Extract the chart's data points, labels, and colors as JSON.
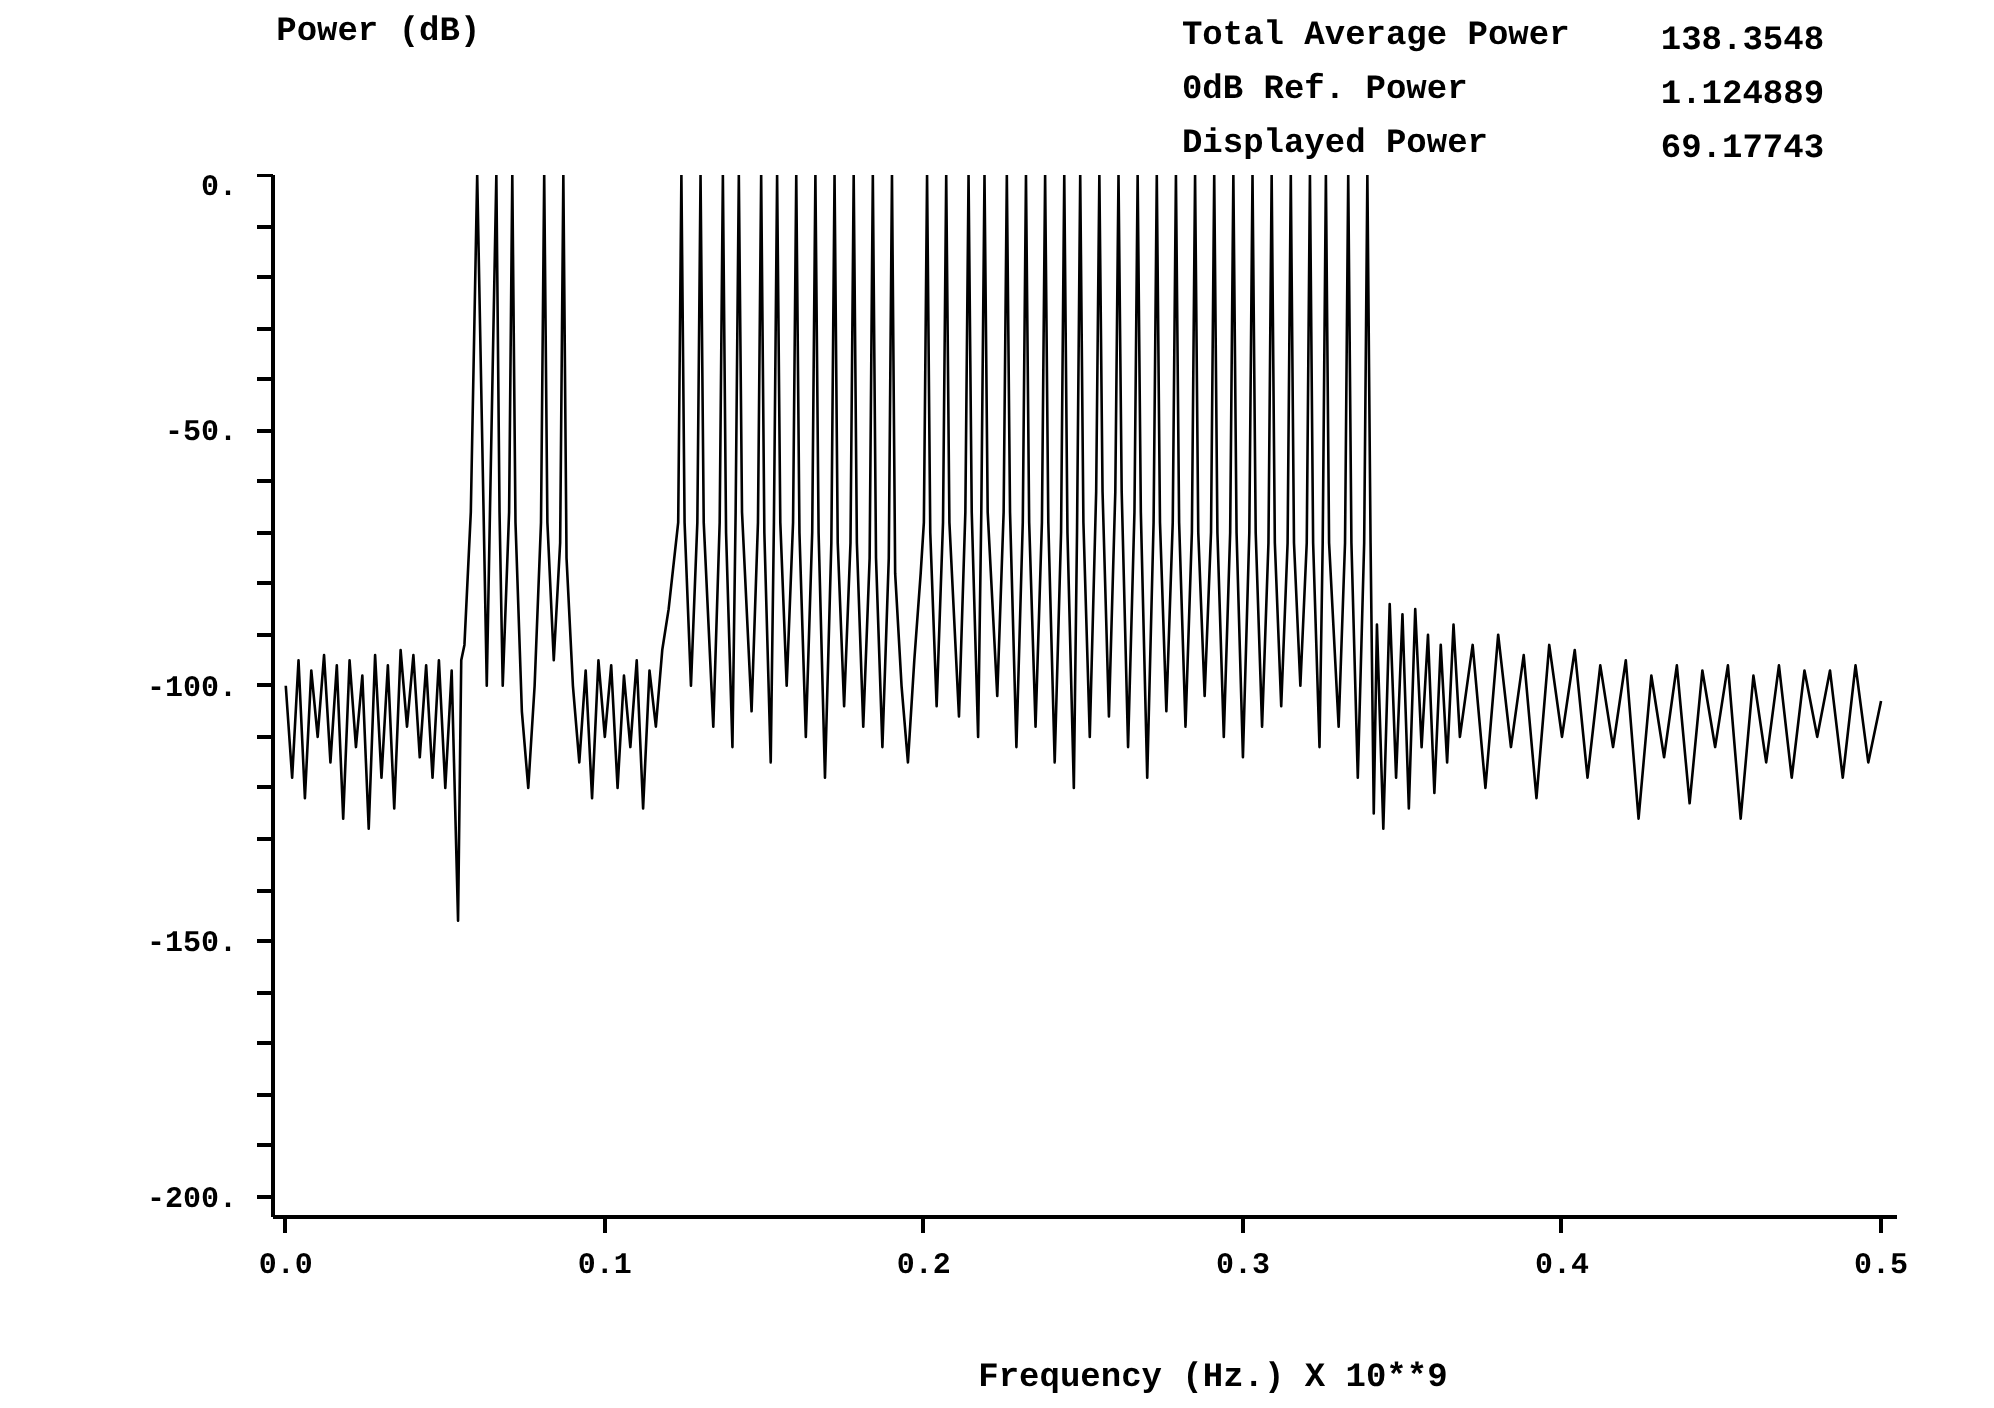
{
  "chart_data": {
    "type": "line",
    "ylabel": "Power (dB)",
    "xlabel": "Frequency (Hz.)  X 10**9",
    "annotations": [
      "Total Average Power",
      "138.3548",
      "0dB Ref. Power",
      "1.124889",
      "Displayed Power",
      "69.17743"
    ],
    "xlim": [
      -0.004,
      0.505
    ],
    "ylim": [
      -204,
      0
    ],
    "xticks": [
      {
        "value": 0,
        "label": "0.0"
      },
      {
        "value": 0.1,
        "label": "0.1"
      },
      {
        "value": 0.2,
        "label": "0.2"
      },
      {
        "value": 0.3,
        "label": "0.3"
      },
      {
        "value": 0.4,
        "label": "0.4"
      },
      {
        "value": 0.5,
        "label": "0.5"
      }
    ],
    "yticks": [
      {
        "value": 0,
        "label": "0."
      },
      {
        "value": -10,
        "label": null
      },
      {
        "value": -20,
        "label": null
      },
      {
        "value": -30,
        "label": null
      },
      {
        "value": -40,
        "label": null
      },
      {
        "value": -50,
        "label": "-50."
      },
      {
        "value": -60,
        "label": null
      },
      {
        "value": -70,
        "label": null
      },
      {
        "value": -80,
        "label": null
      },
      {
        "value": -90,
        "label": null
      },
      {
        "value": -100,
        "label": "-100."
      },
      {
        "value": -110,
        "label": null
      },
      {
        "value": -120,
        "label": null
      },
      {
        "value": -130,
        "label": null
      },
      {
        "value": -140,
        "label": null
      },
      {
        "value": -150,
        "label": "-150."
      },
      {
        "value": -160,
        "label": null
      },
      {
        "value": -170,
        "label": null
      },
      {
        "value": -180,
        "label": null
      },
      {
        "value": -190,
        "label": null
      },
      {
        "value": -200,
        "label": "-200."
      }
    ],
    "grid": false,
    "line_style": "solid",
    "color": "#000000",
    "x": [
      0.0,
      0.002,
      0.004,
      0.006,
      0.008,
      0.01,
      0.012,
      0.014,
      0.016,
      0.018,
      0.02,
      0.022,
      0.024,
      0.026,
      0.028,
      0.03,
      0.032,
      0.034,
      0.036,
      0.038,
      0.04,
      0.042,
      0.044,
      0.046,
      0.048,
      0.05,
      0.052,
      0.054,
      0.055,
      0.056,
      0.058,
      0.06,
      0.062,
      0.063,
      0.064,
      0.066,
      0.067,
      0.068,
      0.07,
      0.071,
      0.072,
      0.074,
      0.076,
      0.078,
      0.08,
      0.081,
      0.082,
      0.084,
      0.086,
      0.087,
      0.088,
      0.09,
      0.092,
      0.094,
      0.096,
      0.098,
      0.1,
      0.102,
      0.104,
      0.106,
      0.108,
      0.11,
      0.112,
      0.114,
      0.116,
      0.118,
      0.12,
      0.123,
      0.124,
      0.125,
      0.127,
      0.129,
      0.13,
      0.131,
      0.134,
      0.136,
      0.137,
      0.138,
      0.14,
      0.141,
      0.142,
      0.143,
      0.146,
      0.148,
      0.149,
      0.15,
      0.152,
      0.153,
      0.154,
      0.155,
      0.157,
      0.159,
      0.16,
      0.161,
      0.163,
      0.165,
      0.166,
      0.167,
      0.169,
      0.171,
      0.172,
      0.173,
      0.175,
      0.177,
      0.178,
      0.179,
      0.181,
      0.183,
      0.184,
      0.185,
      0.187,
      0.189,
      0.19,
      0.191,
      0.193,
      0.195,
      0.197,
      0.199,
      0.2,
      0.201,
      0.202,
      0.204,
      0.206,
      0.207,
      0.208,
      0.211,
      0.213,
      0.214,
      0.215,
      0.217,
      0.218,
      0.219,
      0.22,
      0.223,
      0.225,
      0.226,
      0.227,
      0.229,
      0.231,
      0.232,
      0.233,
      0.235,
      0.237,
      0.238,
      0.239,
      0.241,
      0.243,
      0.244,
      0.245,
      0.247,
      0.248,
      0.249,
      0.25,
      0.252,
      0.254,
      0.255,
      0.256,
      0.258,
      0.26,
      0.261,
      0.262,
      0.264,
      0.266,
      0.267,
      0.268,
      0.27,
      0.272,
      0.273,
      0.274,
      0.276,
      0.278,
      0.279,
      0.28,
      0.282,
      0.284,
      0.285,
      0.286,
      0.288,
      0.29,
      0.291,
      0.292,
      0.294,
      0.296,
      0.297,
      0.298,
      0.3,
      0.302,
      0.303,
      0.304,
      0.306,
      0.308,
      0.309,
      0.31,
      0.312,
      0.314,
      0.315,
      0.316,
      0.318,
      0.32,
      0.321,
      0.322,
      0.324,
      0.325,
      0.326,
      0.327,
      0.33,
      0.332,
      0.333,
      0.334,
      0.336,
      0.338,
      0.339,
      0.34,
      0.341,
      0.342,
      0.344,
      0.346,
      0.348,
      0.35,
      0.352,
      0.354,
      0.356,
      0.358,
      0.36,
      0.362,
      0.364,
      0.366,
      0.368,
      0.372,
      0.376,
      0.38,
      0.384,
      0.388,
      0.392,
      0.396,
      0.4,
      0.404,
      0.408,
      0.412,
      0.416,
      0.42,
      0.424,
      0.428,
      0.432,
      0.436,
      0.44,
      0.444,
      0.448,
      0.452,
      0.456,
      0.46,
      0.464,
      0.468,
      0.472,
      0.476,
      0.48,
      0.484,
      0.488,
      0.492,
      0.496,
      0.5
    ],
    "values": [
      -100,
      -118,
      -95,
      -122,
      -97,
      -110,
      -94,
      -115,
      -96,
      -126,
      -95,
      -112,
      -98,
      -128,
      -94,
      -118,
      -96,
      -124,
      -93,
      -108,
      -94,
      -114,
      -96,
      -118,
      -95,
      -120,
      -97,
      -146,
      -95,
      -92,
      -66,
      0,
      -66,
      -100,
      -66,
      0,
      -66,
      -100,
      -66,
      0,
      -68,
      -105,
      -120,
      -100,
      -68,
      0,
      -68,
      -95,
      -72,
      0,
      -75,
      -100,
      -115,
      -97,
      -122,
      -95,
      -110,
      -96,
      -120,
      -98,
      -112,
      -95,
      -124,
      -97,
      -108,
      -93,
      -85,
      -68,
      0,
      -68,
      -100,
      -68,
      0,
      -68,
      -108,
      -68,
      0,
      -70,
      -112,
      -66,
      0,
      -66,
      -105,
      -68,
      0,
      -70,
      -115,
      -68,
      0,
      -68,
      -100,
      -68,
      0,
      -70,
      -110,
      -70,
      0,
      -70,
      -118,
      -72,
      0,
      -72,
      -104,
      -72,
      0,
      -72,
      -108,
      -75,
      0,
      -75,
      -112,
      -75,
      0,
      -78,
      -100,
      -115,
      -95,
      -78,
      -68,
      0,
      -70,
      -104,
      -68,
      0,
      -68,
      -106,
      -66,
      0,
      -66,
      -110,
      -66,
      0,
      -66,
      -102,
      -66,
      0,
      -66,
      -112,
      -68,
      0,
      -68,
      -108,
      -68,
      0,
      -68,
      -115,
      -70,
      0,
      -70,
      -120,
      -70,
      0,
      -68,
      -110,
      -62,
      0,
      -62,
      -106,
      -62,
      0,
      -62,
      -112,
      -66,
      0,
      -66,
      -118,
      -68,
      0,
      -68,
      -105,
      -68,
      0,
      -68,
      -108,
      -70,
      0,
      -70,
      -102,
      -70,
      0,
      -70,
      -110,
      -70,
      0,
      -70,
      -114,
      -70,
      0,
      -70,
      -108,
      -72,
      0,
      -72,
      -104,
      -72,
      0,
      -72,
      -100,
      -72,
      0,
      -72,
      -112,
      -72,
      0,
      -72,
      -108,
      -72,
      0,
      -72,
      -118,
      -72,
      0,
      -72,
      -125,
      -88,
      -128,
      -84,
      -118,
      -86,
      -124,
      -85,
      -112,
      -90,
      -121,
      -92,
      -115,
      -88,
      -110,
      -92,
      -120,
      -90,
      -112,
      -94,
      -122,
      -92,
      -110,
      -93,
      -118,
      -96,
      -112,
      -95,
      -126,
      -98,
      -114,
      -96,
      -123,
      -97,
      -112,
      -96,
      -126,
      -98,
      -115,
      -96,
      -118,
      -97,
      -110,
      -97,
      -118,
      -96,
      -115,
      -103
    ]
  }
}
